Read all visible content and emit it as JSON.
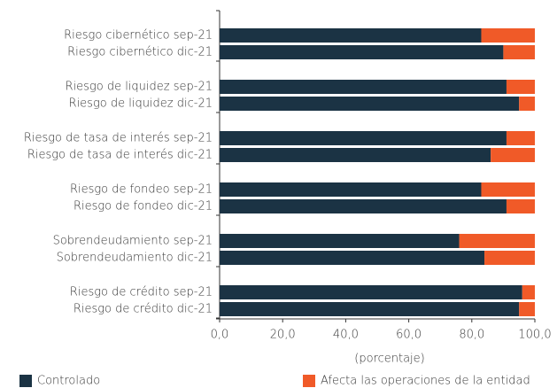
{
  "chart_data": {
    "type": "stacked-bar-horizontal",
    "categories": [
      "Riesgo cibernético sep-21",
      "Riesgo cibernético dic-21",
      "Riesgo de liquidez sep-21",
      "Riesgo de liquidez dic-21",
      "Riesgo de tasa de interés sep-21",
      "Riesgo de tasa de interés dic-21",
      "Riesgo de fondeo sep-21",
      "Riesgo de fondeo dic-21",
      "Sobrendeudamiento sep-21",
      "Sobrendeudamiento dic-21",
      "Riesgo de crédito sep-21",
      "Riesgo de crédito dic-21"
    ],
    "series": [
      {
        "name": "Controlado",
        "color": "#1b3344",
        "values": [
          83,
          90,
          91,
          95,
          91,
          86,
          83,
          91,
          76,
          84,
          96,
          95
        ]
      },
      {
        "name": "Afecta las operaciones de la entidad",
        "color": "#f05a28",
        "values": [
          17,
          10,
          9,
          5,
          9,
          14,
          17,
          9,
          24,
          16,
          4,
          5
        ]
      }
    ],
    "xlabel": "(porcentaje)",
    "xlim": [
      0,
      100
    ],
    "xticks": [
      {
        "value": 0,
        "label": "0,0"
      },
      {
        "value": 20,
        "label": "20,0"
      },
      {
        "value": 40,
        "label": "40,0"
      },
      {
        "value": 60,
        "label": "60,0"
      },
      {
        "value": 80,
        "label": "80,0"
      },
      {
        "value": 100,
        "label": "100,0"
      }
    ]
  }
}
